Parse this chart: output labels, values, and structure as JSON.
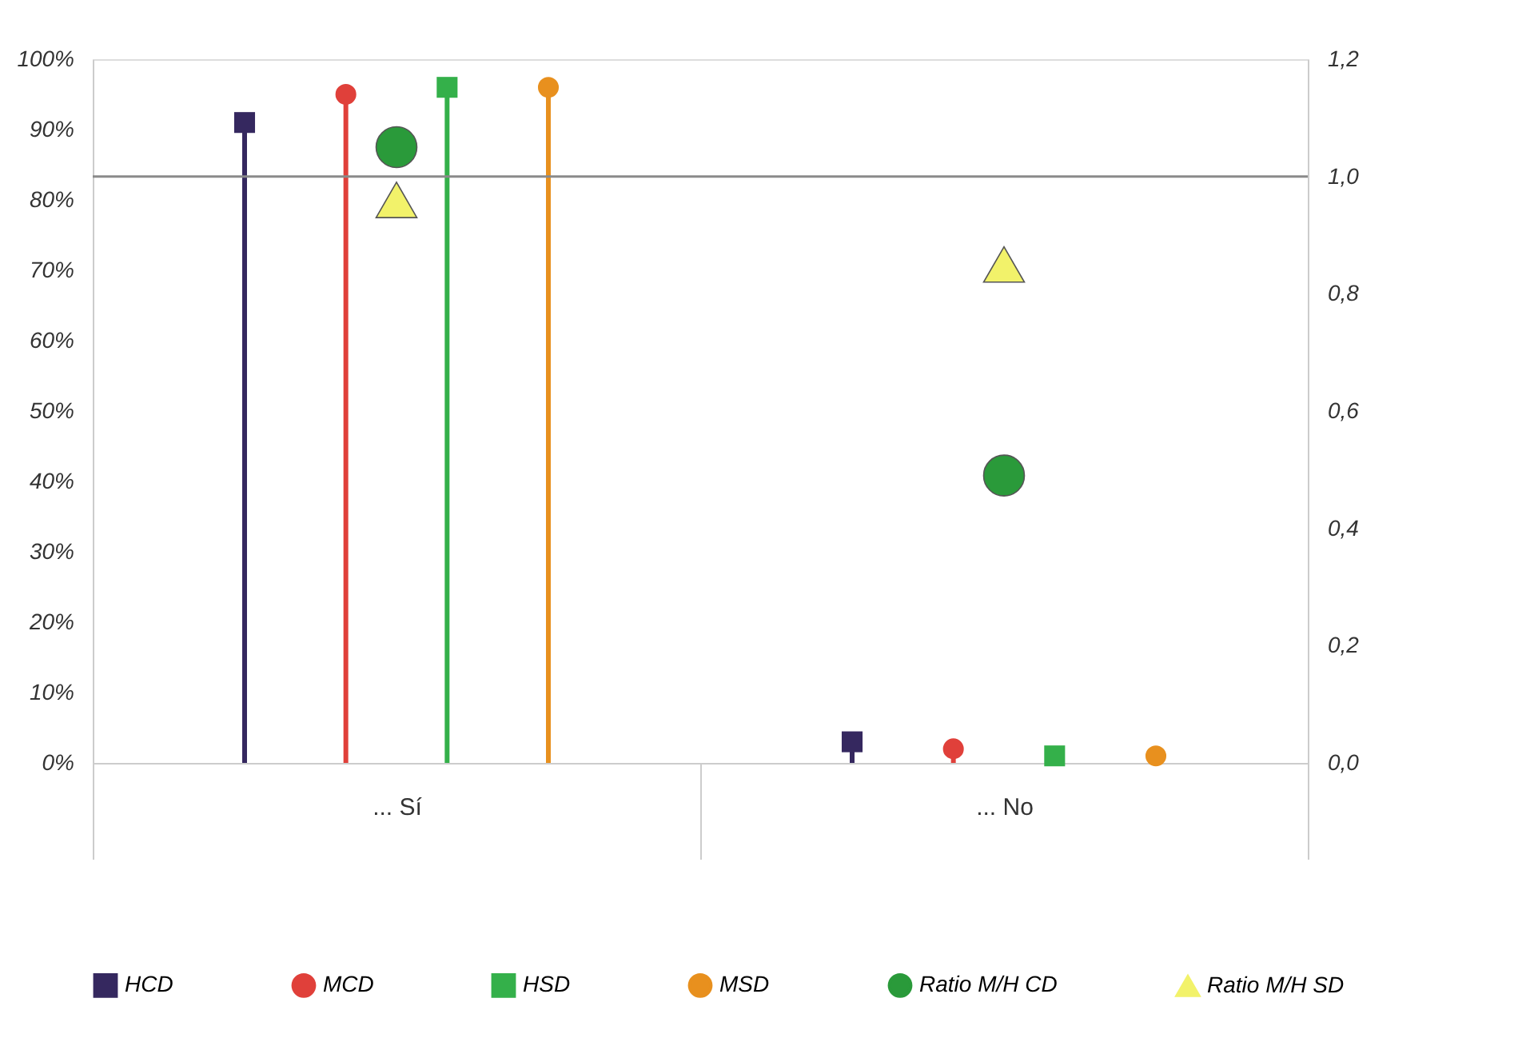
{
  "chart_data": {
    "type": "lollipop",
    "categories": [
      "... Sí",
      "... No"
    ],
    "ylim": [
      0,
      100
    ],
    "yticks": [
      {
        "value": 0,
        "label": "0%"
      },
      {
        "value": 10,
        "label": "10%"
      },
      {
        "value": 20,
        "label": "20%"
      },
      {
        "value": 30,
        "label": "30%"
      },
      {
        "value": 40,
        "label": "40%"
      },
      {
        "value": 50,
        "label": "50%"
      },
      {
        "value": 60,
        "label": "60%"
      },
      {
        "value": 70,
        "label": "70%"
      },
      {
        "value": 80,
        "label": "80%"
      },
      {
        "value": 90,
        "label": "90%"
      },
      {
        "value": 100,
        "label": "100%"
      }
    ],
    "y2lim": [
      0,
      1.2
    ],
    "y2ticks": [
      {
        "value": 0,
        "label": "0,0"
      },
      {
        "value": 0.2,
        "label": "0,2"
      },
      {
        "value": 0.4,
        "label": "0,4"
      },
      {
        "value": 0.6,
        "label": "0,6"
      },
      {
        "value": 0.8,
        "label": "0,8"
      },
      {
        "value": 1.0,
        "label": "1,0"
      },
      {
        "value": 1.2,
        "label": "1,2"
      }
    ],
    "grid": false,
    "legend": "bottom",
    "ref_lines": [
      {
        "axis": "y2",
        "value": 1.0,
        "color": "#8a8a8a"
      }
    ],
    "series": [
      {
        "name": "HCD",
        "color": "#35285f",
        "marker": "square",
        "values": [
          91,
          3
        ]
      },
      {
        "name": "MCD",
        "color": "#e0403a",
        "marker": "circle",
        "values": [
          95,
          2
        ]
      },
      {
        "name": "HSD",
        "color": "#34b04a",
        "marker": "square",
        "values": [
          96,
          1
        ]
      },
      {
        "name": "MSD",
        "color": "#e8901e",
        "marker": "circle",
        "values": [
          96,
          1
        ]
      },
      {
        "name": "Ratio M/H CD",
        "type": "scatter",
        "axis": "y2",
        "marker": "circle",
        "color": "#2a9a3a",
        "values": [
          1.05,
          0.49
        ]
      },
      {
        "name": "Ratio M/H SD",
        "type": "scatter",
        "axis": "y2",
        "marker": "triangle",
        "color": "#f2f26a",
        "values": [
          0.96,
          0.85
        ]
      }
    ]
  }
}
